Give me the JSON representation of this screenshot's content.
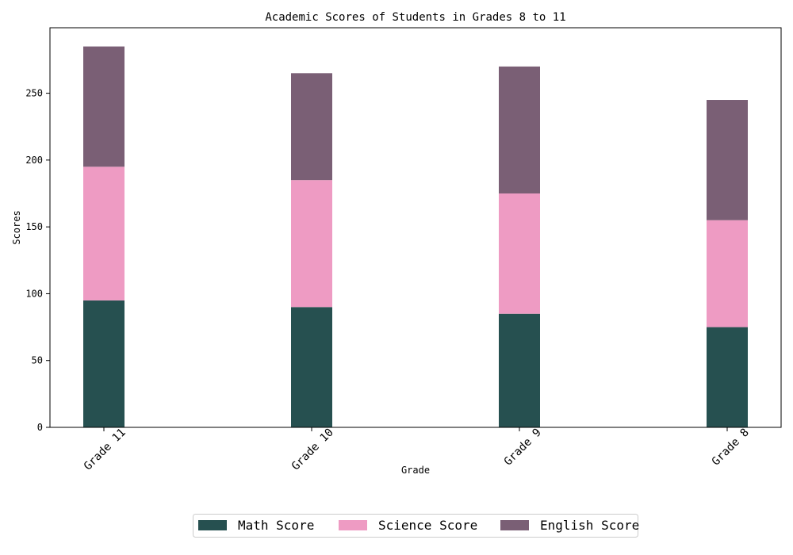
{
  "chart_data": {
    "type": "bar",
    "stacked": true,
    "title": "Academic Scores of Students in Grades 8 to 11",
    "xlabel": "Grade",
    "ylabel": "Scores",
    "categories": [
      "Grade 11",
      "Grade 10",
      "Grade 9",
      "Grade 8"
    ],
    "series": [
      {
        "name": "Math Score",
        "values": [
          95,
          90,
          85,
          75
        ],
        "color": "#265050"
      },
      {
        "name": "Science Score",
        "values": [
          100,
          95,
          90,
          80
        ],
        "color": "#ee9bc3"
      },
      {
        "name": "English Score",
        "values": [
          90,
          80,
          95,
          90
        ],
        "color": "#7a5f75"
      }
    ],
    "ylim": [
      0,
      299
    ],
    "yticks": [
      0,
      50,
      100,
      150,
      200,
      250
    ],
    "grid": false,
    "legend_position": "bottom-center"
  }
}
